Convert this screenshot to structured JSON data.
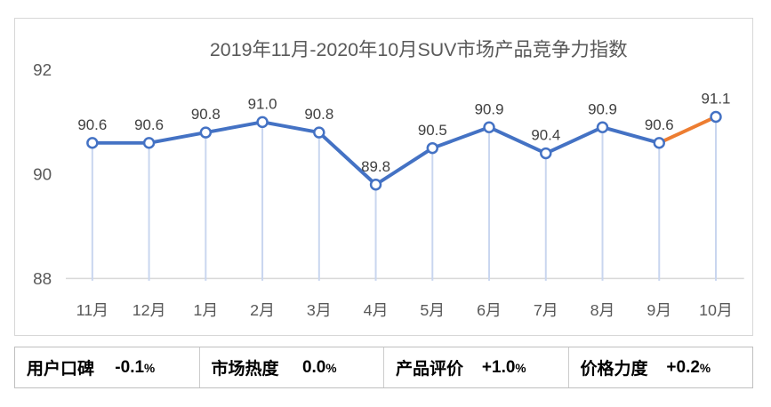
{
  "chart_data": {
    "type": "line",
    "title": "2019年11月-2020年10月SUV市场产品竞争力指数",
    "categories": [
      "11月",
      "12月",
      "1月",
      "2月",
      "3月",
      "4月",
      "5月",
      "6月",
      "7月",
      "8月",
      "9月",
      "10月"
    ],
    "values": [
      90.6,
      90.6,
      90.8,
      91.0,
      90.8,
      89.8,
      90.5,
      90.9,
      90.4,
      90.9,
      90.6,
      91.1
    ],
    "data_labels": [
      "90.6",
      "90.6",
      "90.8",
      "91.0",
      "90.8",
      "89.8",
      "90.5",
      "90.9",
      "90.4",
      "90.9",
      "90.6",
      "91.1"
    ],
    "y_ticks": [
      88,
      90,
      92
    ],
    "ylim": [
      88,
      92.6
    ],
    "grid": false,
    "legend": "none",
    "markers": "circle-open",
    "drop_lines": true,
    "highlight": {
      "segment_from": "9月",
      "segment_to": "10月",
      "segment_index": 10
    },
    "colors": {
      "line": "#4472C4",
      "highlight_segment": "#ED7D31",
      "marker_fill": "#FFFFFF",
      "marker_stroke": "#4472C4",
      "drop_line": "#C9D6EF",
      "axis_line": "#D9D9D9",
      "axis_text": "#595959",
      "title_text": "#595959",
      "data_label_text": "#404040"
    }
  },
  "stats": {
    "items": [
      {
        "label": "用户口碑",
        "value": "-0.1%"
      },
      {
        "label": "市场热度",
        "value": "0.0%"
      },
      {
        "label": "产品评价",
        "value": "+1.0%"
      },
      {
        "label": "价格力度",
        "value": "+0.2%"
      }
    ]
  }
}
